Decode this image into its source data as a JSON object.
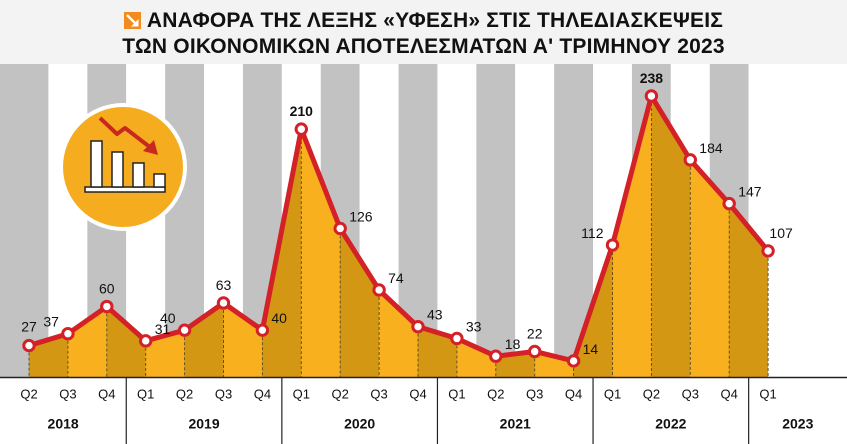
{
  "title": {
    "line1": "ΑΝΑΦΟΡΑ ΤΗΣ ΛΕΞΗΣ «ΥΦΕΣΗ» ΣΤΙΣ ΤΗΛΕΔΙΑΣΚΕΨΕΙΣ",
    "line2": "ΤΩΝ ΟΙΚΟΝΟΜΙΚΩΝ ΑΠΟΤΕΛΕΣΜΑΤΩΝ Α' ΤΡΙΜΗΝΟΥ 2023"
  },
  "icons": {
    "title_badge": "down-trend-arrow-icon",
    "emblem": "falling-bar-chart-icon"
  },
  "colors": {
    "line": "#d42027",
    "area_dark": "#d39714",
    "area_light": "#f8b01f",
    "stripe_gray": "#c2c2c2",
    "stripe_white": "#ffffff",
    "emblem_bg": "#f5ac1f",
    "emblem_arrow": "#c9281f"
  },
  "chart_data": {
    "type": "area",
    "title": "ΑΝΑΦΟΡΑ ΤΗΣ ΛΕΞΗΣ «ΥΦΕΣΗ» ΣΤΙΣ ΤΗΛΕΔΙΑΣΚΕΨΕΙΣ ΤΩΝ ΟΙΚΟΝΟΜΙΚΩΝ ΑΠΟΤΕΛΕΣΜΑΤΩΝ Α' ΤΡΙΜΗΝΟΥ 2023",
    "xlabel": "",
    "ylabel": "",
    "ylim": [
      0,
      250
    ],
    "grid": false,
    "legend": "none",
    "data_labels": true,
    "x": [
      "Q2",
      "Q3",
      "Q4",
      "Q1",
      "Q2",
      "Q3",
      "Q4",
      "Q1",
      "Q2",
      "Q3",
      "Q4",
      "Q1",
      "Q2",
      "Q3",
      "Q4",
      "Q1",
      "Q2",
      "Q3",
      "Q4",
      "Q1"
    ],
    "years": [
      {
        "label": "2018",
        "count": 3
      },
      {
        "label": "2019",
        "count": 4
      },
      {
        "label": "2020",
        "count": 4
      },
      {
        "label": "2021",
        "count": 4
      },
      {
        "label": "2022",
        "count": 4
      },
      {
        "label": "2023",
        "count": 1
      }
    ],
    "values": [
      27,
      37,
      60,
      31,
      40,
      63,
      40,
      210,
      126,
      74,
      43,
      33,
      18,
      22,
      14,
      112,
      238,
      184,
      147,
      107
    ],
    "bold_labels": [
      210,
      238
    ]
  }
}
